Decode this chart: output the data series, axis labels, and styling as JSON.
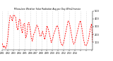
{
  "title": "Milwaukee Weather Solar Radiation Avg per Day W/m2/minute",
  "background_color": "#ffffff",
  "line_color": "#ff0000",
  "grid_color": "#bbbbbb",
  "grid_style": ":",
  "ylim": [
    0,
    500
  ],
  "yticks": [
    100,
    200,
    300,
    400,
    500
  ],
  "values": [
    85,
    30,
    55,
    20,
    55,
    170,
    320,
    440,
    430,
    370,
    450,
    440,
    420,
    295,
    255,
    385,
    395,
    275,
    215,
    335,
    340,
    155,
    195,
    345,
    350,
    265,
    155,
    115,
    195,
    225,
    275,
    320,
    295,
    235,
    175,
    185,
    240,
    195,
    135,
    195,
    310,
    275,
    225,
    155,
    95,
    135,
    195,
    235,
    275,
    315,
    295,
    215,
    115,
    75,
    55,
    95,
    165,
    235,
    305,
    375,
    355,
    285,
    195,
    115,
    75,
    95,
    155,
    215,
    275,
    340,
    375,
    315,
    215,
    125,
    65,
    55,
    75,
    125,
    195,
    285,
    335,
    95
  ],
  "n_gridlines": 17,
  "figwidth": 1.6,
  "figheight": 0.87,
  "dpi": 100
}
